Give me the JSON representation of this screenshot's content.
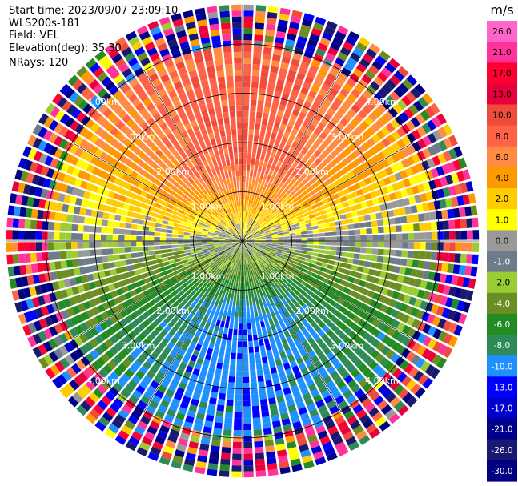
{
  "header": {
    "start_time": "Start time: 2023/09/07 23:09:10",
    "instrument": "WLS200s-181",
    "field": "Field: VEL",
    "elevation": "Elevation(deg): 35.30",
    "nrays": "NRays: 120"
  },
  "chart_data": {
    "type": "ppi_polar_scan",
    "field": "VEL",
    "elevation_deg": 35.3,
    "n_rays": 120,
    "range_rings_km": [
      1.0,
      2.0,
      3.0,
      4.0
    ],
    "range_ring_labels": [
      "1.00km",
      "2.00km",
      "3.00km",
      "4.00km"
    ],
    "max_range_km": 4.8,
    "spoke_angles_deg": [
      0,
      30,
      60,
      90,
      120,
      150,
      180,
      210,
      240,
      270,
      300,
      330
    ],
    "colorbar": {
      "unit": "m/s",
      "tick_labels": [
        "26.0",
        "21.0",
        "17.0",
        "13.0",
        "10.0",
        "8.0",
        "6.0",
        "4.0",
        "2.0",
        "1.0",
        "0.0",
        "-1.0",
        "-2.0",
        "-4.0",
        "-6.0",
        "-8.0",
        "-10.0",
        "-13.0",
        "-17.0",
        "-21.0",
        "-26.0",
        "-30.0"
      ],
      "colors": [
        "#ff66cc",
        "#ff3399",
        "#ff0033",
        "#e8003d",
        "#f04a3a",
        "#ff6347",
        "#ff8c42",
        "#ff9900",
        "#ffcc00",
        "#ffff00",
        "#999999",
        "#6e7b8b",
        "#9acd32",
        "#6b8e23",
        "#228b22",
        "#2e8b57",
        "#1e90ff",
        "#0000ff",
        "#0000cd",
        "#00008b",
        "#191970",
        "#000080"
      ]
    },
    "velocity_pattern": [
      {
        "sector": "north",
        "range_km": [
          0.0,
          4.0
        ],
        "velocity_ms": [
          4.0,
          10.0
        ],
        "description_of_pixels": "positive"
      },
      {
        "sector": "east-west band",
        "range_km": [
          0.8,
          4.0
        ],
        "velocity_ms": [
          -1.0,
          2.0
        ]
      },
      {
        "sector": "south",
        "range_km": [
          0.0,
          4.0
        ],
        "velocity_ms": [
          -10.0,
          -4.0
        ]
      },
      {
        "sector": "all",
        "range_km": [
          4.0,
          4.8
        ],
        "velocity_ms": [
          -30.0,
          26.0
        ]
      }
    ]
  }
}
